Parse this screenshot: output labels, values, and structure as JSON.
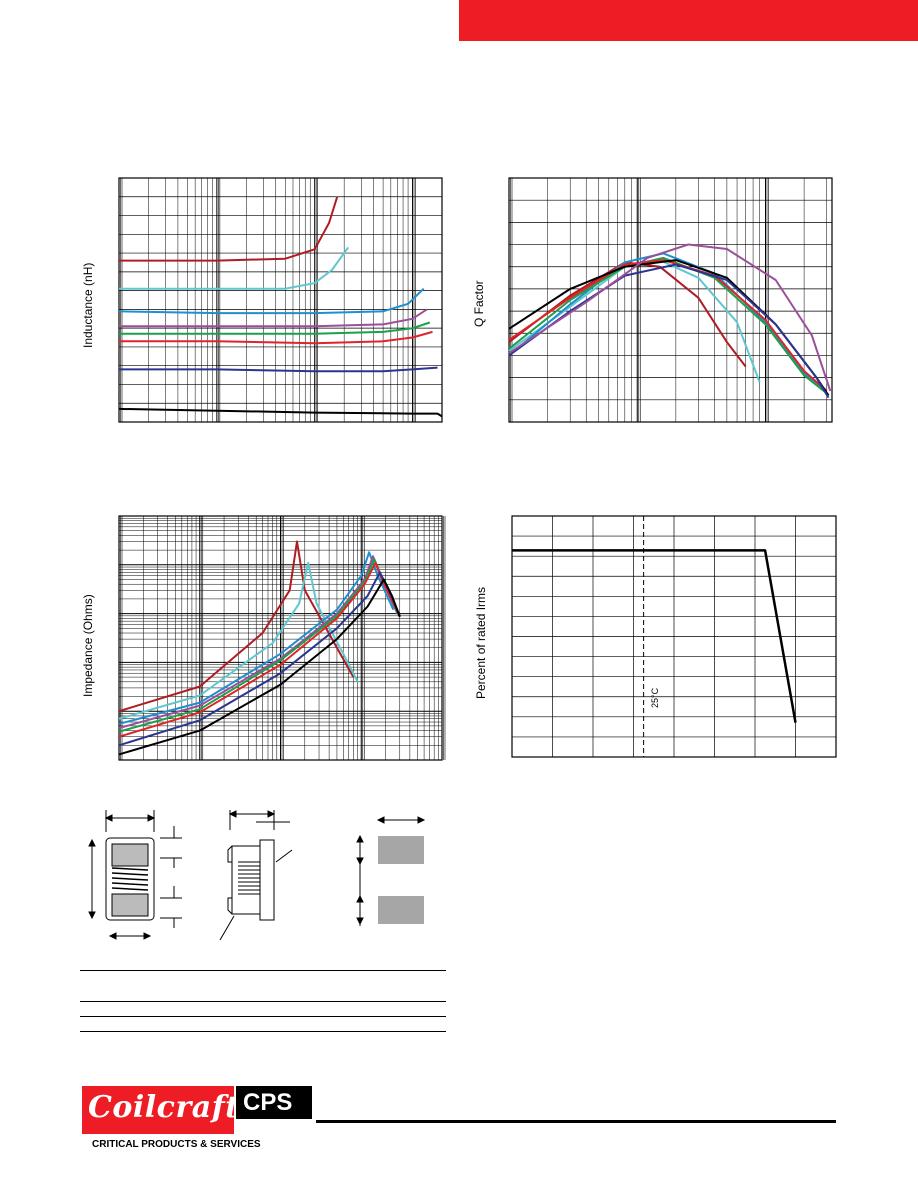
{
  "header": {
    "accent_color": "#ee1c25"
  },
  "chart_data": [
    {
      "type": "line",
      "ylabel": "Inductance (nH)",
      "xscale": "log",
      "grid": true,
      "series": [
        {
          "color": "#b01c24",
          "x": [
            1,
            10,
            50,
            100,
            140,
            170
          ],
          "y": [
            8.6,
            8.6,
            8.7,
            9.2,
            10.6,
            12.0
          ]
        },
        {
          "color": "#5ec7d0",
          "x": [
            1,
            10,
            50,
            100,
            150,
            220
          ],
          "y": [
            7.1,
            7.1,
            7.1,
            7.4,
            8.1,
            9.3
          ]
        },
        {
          "color": "#1f8fd0",
          "x": [
            1,
            10,
            100,
            500,
            900,
            1300
          ],
          "y": [
            5.9,
            5.8,
            5.8,
            5.9,
            6.3,
            7.1
          ]
        },
        {
          "color": "#9b4f9b",
          "x": [
            1,
            10,
            100,
            500,
            1000,
            1400
          ],
          "y": [
            5.1,
            5.1,
            5.1,
            5.2,
            5.5,
            6.0
          ]
        },
        {
          "color": "#1aa14a",
          "x": [
            1,
            10,
            100,
            500,
            1000,
            1500
          ],
          "y": [
            4.7,
            4.7,
            4.7,
            4.8,
            5.0,
            5.3
          ]
        },
        {
          "color": "#e0242b",
          "x": [
            1,
            10,
            100,
            500,
            1000,
            1600
          ],
          "y": [
            4.3,
            4.3,
            4.2,
            4.3,
            4.5,
            4.8
          ]
        },
        {
          "color": "#2a3590",
          "x": [
            1,
            10,
            100,
            500,
            1000,
            1800
          ],
          "y": [
            2.8,
            2.8,
            2.7,
            2.7,
            2.8,
            2.9
          ]
        },
        {
          "color": "#000000",
          "x": [
            1,
            10,
            100,
            1000,
            1800,
            2000
          ],
          "y": [
            0.7,
            0.6,
            0.5,
            0.45,
            0.45,
            0.3
          ]
        }
      ]
    },
    {
      "type": "line",
      "ylabel": "Q Factor",
      "xscale": "log",
      "grid": true,
      "series": [
        {
          "color": "#b01c24",
          "x": [
            10,
            30,
            80,
            150,
            300,
            500,
            700
          ],
          "y": [
            3.6,
            5.7,
            7.2,
            7.0,
            5.6,
            3.6,
            2.5
          ]
        },
        {
          "color": "#5ec7d0",
          "x": [
            10,
            30,
            80,
            150,
            300,
            600,
            900
          ],
          "y": [
            3.2,
            5.2,
            7.0,
            7.3,
            6.5,
            4.5,
            1.8
          ]
        },
        {
          "color": "#1f8fd0",
          "x": [
            10,
            30,
            80,
            160,
            400,
            1000,
            2000,
            3000
          ],
          "y": [
            3.0,
            5.3,
            7.2,
            7.6,
            6.7,
            4.5,
            2.2,
            1.4
          ]
        },
        {
          "color": "#1aa14a",
          "x": [
            10,
            30,
            80,
            160,
            400,
            1000,
            2000,
            3000
          ],
          "y": [
            3.3,
            5.5,
            7.0,
            7.4,
            6.5,
            4.4,
            2.1,
            1.3
          ]
        },
        {
          "color": "#e0242b",
          "x": [
            10,
            30,
            80,
            160,
            400,
            1000,
            2000,
            3000
          ],
          "y": [
            3.7,
            5.6,
            7.1,
            7.3,
            6.6,
            4.6,
            2.3,
            1.4
          ]
        },
        {
          "color": "#000000",
          "x": [
            10,
            30,
            80,
            200,
            500,
            1200,
            2500,
            3100
          ],
          "y": [
            4.2,
            6.0,
            7.0,
            7.3,
            6.5,
            4.4,
            2.0,
            1.2
          ]
        },
        {
          "color": "#2a3590",
          "x": [
            10,
            30,
            80,
            200,
            500,
            1200,
            2500,
            3100
          ],
          "y": [
            3.0,
            5.0,
            6.6,
            7.1,
            6.4,
            4.4,
            2.0,
            1.1
          ]
        },
        {
          "color": "#9b4f9b",
          "x": [
            10,
            40,
            120,
            250,
            500,
            1200,
            2300,
            3200
          ],
          "y": [
            3.1,
            5.4,
            7.4,
            8.0,
            7.8,
            6.4,
            3.9,
            1.4
          ]
        }
      ]
    },
    {
      "type": "line",
      "ylabel": "Impedance (Ohms)",
      "xscale": "log",
      "yscale": "log",
      "grid": true,
      "series": [
        {
          "color": "#b01c24",
          "x": [
            1,
            10,
            60,
            130,
            160,
            200,
            500,
            800
          ],
          "y": [
            1.0,
            3.2,
            40,
            300,
            3000,
            300,
            20,
            5
          ]
        },
        {
          "color": "#5ec7d0",
          "x": [
            1,
            10,
            80,
            170,
            220,
            280,
            600,
            900
          ],
          "y": [
            0.7,
            2.1,
            25,
            160,
            1100,
            160,
            15,
            4
          ]
        },
        {
          "color": "#1f8fd0",
          "x": [
            1,
            10,
            100,
            500,
            1000,
            1250,
            1600,
            2500
          ],
          "y": [
            0.55,
            1.5,
            15,
            120,
            600,
            1800,
            600,
            120
          ]
        },
        {
          "color": "#9b4f9b",
          "x": [
            1,
            10,
            100,
            500,
            1100,
            1400,
            1800,
            2800
          ],
          "y": [
            0.45,
            1.3,
            12,
            100,
            500,
            1500,
            500,
            100
          ]
        },
        {
          "color": "#1aa14a",
          "x": [
            1,
            10,
            100,
            500,
            1100,
            1450,
            1900,
            2900
          ],
          "y": [
            0.38,
            1.1,
            11,
            90,
            450,
            1300,
            450,
            95
          ]
        },
        {
          "color": "#e0242b",
          "x": [
            1,
            10,
            100,
            500,
            1100,
            1500,
            1900,
            3000
          ],
          "y": [
            0.3,
            0.95,
            9,
            80,
            400,
            1100,
            400,
            90
          ]
        },
        {
          "color": "#2a3590",
          "x": [
            1,
            10,
            100,
            500,
            1200,
            1700,
            2200,
            3000
          ],
          "y": [
            0.2,
            0.65,
            6,
            50,
            230,
            700,
            300,
            90
          ]
        },
        {
          "color": "#000000",
          "x": [
            1,
            10,
            100,
            500,
            1200,
            1900,
            2400,
            3000
          ],
          "y": [
            0.13,
            0.4,
            3.5,
            30,
            140,
            500,
            230,
            85
          ]
        }
      ]
    },
    {
      "type": "line",
      "ylabel": "Percent of rated Irms",
      "annotation": "25°C",
      "grid": true,
      "series": [
        {
          "color": "#000000",
          "x": [
            0,
            1,
            2,
            3,
            4,
            5,
            6,
            6.25,
            7.0
          ],
          "y": [
            100,
            100,
            100,
            100,
            100,
            100,
            100,
            100,
            0
          ]
        }
      ]
    }
  ],
  "footer": {
    "logo_text": "Coilcraft",
    "cps_text": "CPS",
    "tagline": "CRITICAL PRODUCTS & SERVICES"
  }
}
